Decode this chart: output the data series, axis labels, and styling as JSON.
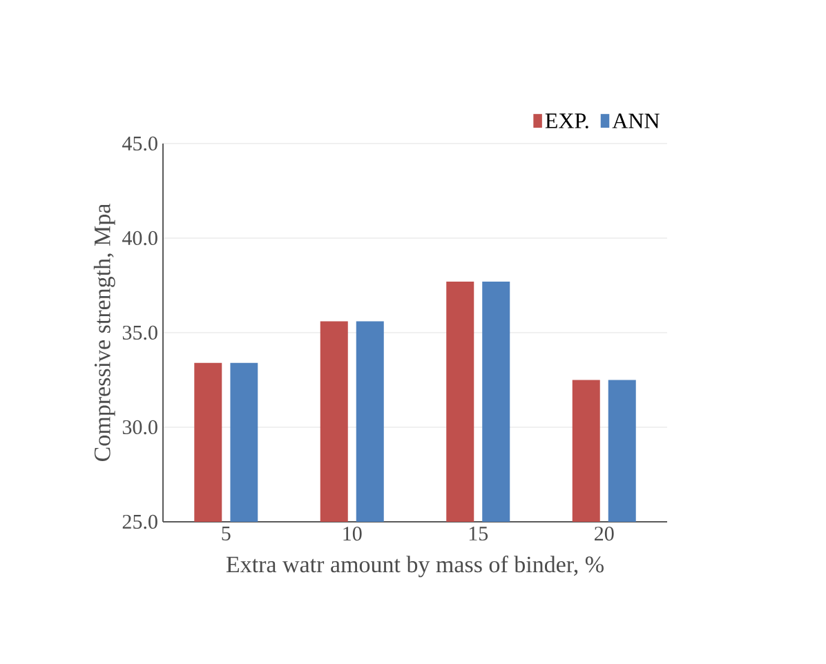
{
  "chart_data": {
    "type": "bar",
    "xlabel": "Extra watr amount by mass of binder, %",
    "ylabel": "Compressive strength, Mpa",
    "categories": [
      "5",
      "10",
      "15",
      "20"
    ],
    "series": [
      {
        "name": "EXP.",
        "color": "#c0504d",
        "values": [
          33.4,
          35.6,
          37.7,
          32.5
        ]
      },
      {
        "name": "ANN",
        "color": "#4f81bd",
        "values": [
          33.4,
          35.6,
          37.7,
          32.5
        ]
      }
    ],
    "ylim": [
      25,
      45
    ],
    "yticks": [
      {
        "value": 25,
        "label": "25.0"
      },
      {
        "value": 30,
        "label": "30.0"
      },
      {
        "value": 35,
        "label": "35.0"
      },
      {
        "value": 40,
        "label": "40.0"
      },
      {
        "value": 45,
        "label": "45.0"
      }
    ],
    "grid": "y",
    "legend": "top right"
  }
}
